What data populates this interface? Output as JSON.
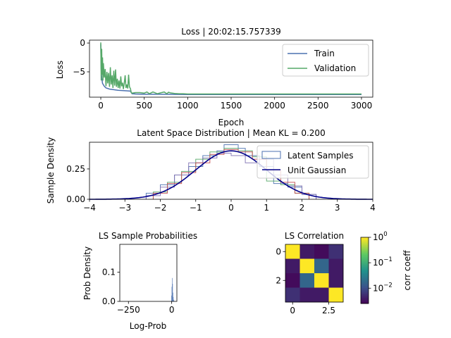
{
  "figure": {
    "background": "#ffffff"
  },
  "chart_data": [
    {
      "id": "loss",
      "type": "line",
      "title": "Loss | 20:02:15.757339",
      "xlabel": "Epoch",
      "ylabel": "Loss",
      "xlim": [
        -130,
        3130
      ],
      "ylim": [
        -9.4,
        0.5
      ],
      "xticks": [
        0,
        500,
        1000,
        1500,
        2000,
        2500,
        3000
      ],
      "yticks": [
        0,
        -5
      ],
      "legend_position": "top-right",
      "series": [
        {
          "name": "Train",
          "color": "#4c72b0",
          "x": [
            0,
            5,
            10,
            20,
            40,
            60,
            100,
            150,
            200,
            250,
            300,
            340,
            360,
            400,
            500,
            700,
            1000,
            1500,
            2000,
            2500,
            3000
          ],
          "y": [
            -0.2,
            -4.5,
            -6.0,
            -7.0,
            -7.5,
            -7.8,
            -8.0,
            -8.1,
            -8.2,
            -8.25,
            -8.3,
            -8.35,
            -8.8,
            -8.85,
            -8.9,
            -8.9,
            -8.95,
            -8.95,
            -8.95,
            -8.95,
            -8.95
          ]
        },
        {
          "name": "Validation",
          "color": "#55a868",
          "x": [
            0,
            5,
            10,
            15,
            20,
            25,
            30,
            40,
            50,
            60,
            70,
            80,
            90,
            100,
            110,
            120,
            130,
            140,
            150,
            160,
            170,
            180,
            190,
            200,
            210,
            220,
            230,
            240,
            250,
            260,
            270,
            280,
            290,
            300,
            310,
            320,
            330,
            340,
            345,
            350,
            360,
            400,
            450,
            500,
            530,
            560,
            600,
            650,
            700,
            730,
            760,
            780,
            800,
            850,
            900,
            950,
            1000,
            1500,
            2000,
            2500,
            3000
          ],
          "y": [
            0.1,
            -6.5,
            -1.0,
            -5.5,
            -2.5,
            -6.5,
            -3.5,
            -6.0,
            -4.5,
            -7.5,
            -5.0,
            -7.0,
            -5.2,
            -7.6,
            -4.2,
            -7.2,
            -5.6,
            -7.8,
            -4.8,
            -7.4,
            -4.6,
            -7.6,
            -6.2,
            -7.8,
            -6.5,
            -7.9,
            -5.8,
            -7.5,
            -6.9,
            -8.0,
            -7.0,
            -5.6,
            -7.8,
            -7.2,
            -7.9,
            -5.5,
            -7.6,
            -7.9,
            -8.2,
            -8.6,
            -8.7,
            -8.6,
            -8.6,
            -8.7,
            -8.5,
            -8.8,
            -8.5,
            -8.8,
            -8.6,
            -8.5,
            -8.8,
            -8.55,
            -8.65,
            -8.75,
            -8.8,
            -8.8,
            -8.85,
            -8.85,
            -8.85,
            -8.85,
            -8.85
          ]
        }
      ]
    },
    {
      "id": "latent",
      "type": "line",
      "title": "Latent Space Distribution | Mean KL = 0.200",
      "xlabel": "",
      "ylabel": "Sample Density",
      "xlim": [
        -4,
        4
      ],
      "ylim": [
        0,
        0.47
      ],
      "xticks": [
        -4,
        -3,
        -2,
        -1,
        0,
        1,
        2,
        3,
        4
      ],
      "yticks": [
        0.0,
        0.25
      ],
      "ytick_labels": [
        "0.00",
        "0.25"
      ],
      "legend_position": "top-right",
      "series": [
        {
          "name": "Latent Samples",
          "color": "#4c72b0",
          "style": "step-histogram",
          "bin_edges": [
            -2.4,
            -2.0,
            -1.6,
            -1.2,
            -0.8,
            -0.4,
            -0.2,
            0.0,
            0.2,
            0.4,
            0.8,
            1.2,
            1.6,
            2.0,
            2.4
          ],
          "values": [
            0.05,
            0.12,
            0.2,
            0.27,
            0.36,
            0.4,
            0.45,
            0.45,
            0.42,
            0.36,
            0.27,
            0.13,
            0.1,
            0.04
          ]
        },
        {
          "name": "",
          "color": "#8172b2",
          "style": "step-histogram",
          "bin_edges": [
            -2.4,
            -2.0,
            -1.6,
            -1.2,
            -0.8,
            -0.4,
            0.0,
            0.4,
            0.8,
            1.2,
            1.6,
            2.0,
            2.4
          ],
          "values": [
            0.03,
            0.1,
            0.2,
            0.3,
            0.34,
            0.38,
            0.36,
            0.3,
            0.33,
            0.2,
            0.11,
            0.04
          ]
        },
        {
          "name": "",
          "color": "#55a868",
          "style": "step-histogram",
          "bin_edges": [
            -2.2,
            -1.8,
            -1.4,
            -1.0,
            -0.6,
            -0.2,
            0.2,
            0.6,
            1.0,
            1.4,
            1.8,
            2.2
          ],
          "values": [
            0.06,
            0.14,
            0.23,
            0.33,
            0.39,
            0.42,
            0.4,
            0.35,
            0.15,
            0.12,
            0.05
          ]
        },
        {
          "name": "",
          "color": "#c44e52",
          "style": "step-histogram",
          "bin_edges": [
            -2.2,
            -1.8,
            -1.4,
            -1.0,
            -0.6,
            -0.2,
            0.2,
            0.6,
            1.0,
            1.4,
            1.8,
            2.2
          ],
          "values": [
            0.05,
            0.13,
            0.22,
            0.3,
            0.37,
            0.41,
            0.39,
            0.33,
            0.24,
            0.14,
            0.05
          ]
        },
        {
          "name": "Unit Gaussian",
          "color": "#00008b",
          "style": "gaussian",
          "mean": 0,
          "std": 1
        }
      ]
    },
    {
      "id": "logprob",
      "type": "bar",
      "title": "LS Sample Probabilities",
      "xlabel": "Log-Prob",
      "ylabel": "Prob Density",
      "xlim": [
        -300,
        30
      ],
      "ylim": [
        0,
        0.195
      ],
      "xticks": [
        -250,
        0
      ],
      "yticks": [
        0.0,
        0.1
      ],
      "ytick_labels": [
        "0.0",
        "0.1"
      ],
      "color": "#4c72b0",
      "bin_edges": [
        -2,
        0,
        2,
        4,
        6,
        8,
        10,
        12,
        14
      ],
      "values": [
        0.02,
        0.05,
        0.08,
        0.06,
        0.03,
        0.015,
        0.006,
        0.002
      ]
    },
    {
      "id": "corr",
      "type": "heatmap",
      "title": "LS Correlation",
      "xticks": [
        0.0,
        2.5
      ],
      "yticks": [
        0,
        2
      ],
      "matrix": [
        [
          1.0,
          0.004,
          0.003,
          0.006
        ],
        [
          0.004,
          1.0,
          0.018,
          0.004
        ],
        [
          0.003,
          0.018,
          1.0,
          0.004
        ],
        [
          0.006,
          0.004,
          0.004,
          1.0
        ]
      ],
      "colorbar": {
        "label": "corr coeff",
        "scale": "log",
        "min": 0.0025,
        "max": 1.0,
        "ticks": [
          {
            "exp": "0",
            "value": 1.0
          },
          {
            "exp": "−1",
            "value": 0.1
          },
          {
            "exp": "−2",
            "value": 0.01
          }
        ]
      },
      "colors": [
        "#440154",
        "#3b528b",
        "#21918c",
        "#5ec962",
        "#fde725"
      ]
    }
  ]
}
